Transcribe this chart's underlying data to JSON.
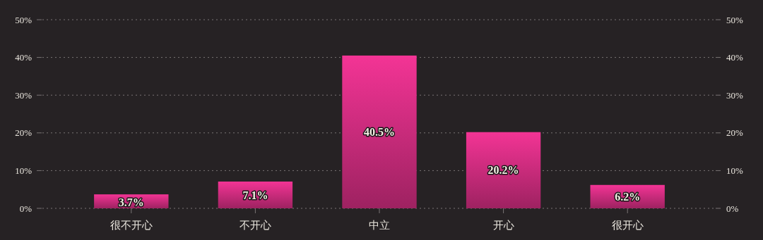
{
  "chart_data": {
    "type": "bar",
    "categories": [
      "很不开心",
      "不开心",
      "中立",
      "开心",
      "很开心"
    ],
    "series": [
      {
        "color": "#c42a78",
        "values": [
          3.7,
          7.1,
          40.5,
          20.2,
          6.2
        ],
        "value_labels": [
          "3.7%",
          "7.1%",
          "40.5%",
          "20.2%",
          "6.2%"
        ]
      }
    ],
    "ylim": [
      0,
      50
    ],
    "yticks": [
      {
        "value": 0,
        "label": "0%"
      },
      {
        "value": 10,
        "label": "10%"
      },
      {
        "value": 20,
        "label": "20%"
      },
      {
        "value": 30,
        "label": "30%"
      },
      {
        "value": 40,
        "label": "40%"
      },
      {
        "value": 50,
        "label": "50%"
      }
    ],
    "y2lim": [
      0,
      50
    ],
    "y2ticks": [
      {
        "value": 0,
        "label": "0%"
      },
      {
        "value": 10,
        "label": "10%"
      },
      {
        "value": 20,
        "label": "20%"
      },
      {
        "value": 30,
        "label": "30%"
      },
      {
        "value": 40,
        "label": "40%"
      },
      {
        "value": 50,
        "label": "50%"
      }
    ],
    "grid": "y"
  }
}
